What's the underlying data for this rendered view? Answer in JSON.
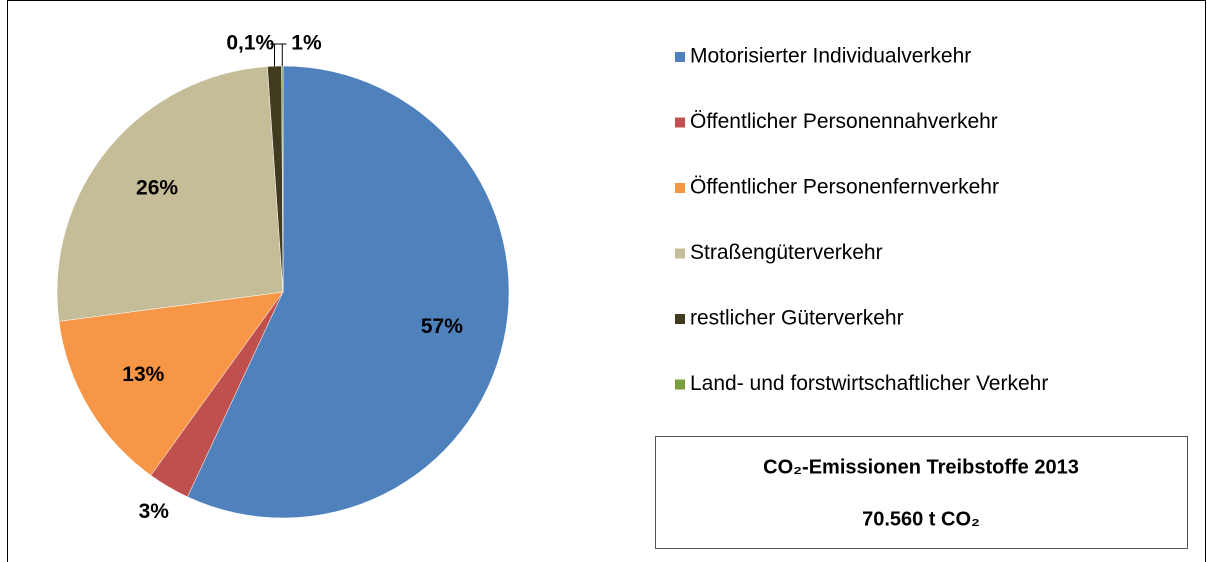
{
  "chart_data": {
    "type": "pie",
    "categories": [
      "Motorisierter Individualverkehr",
      "Öffentlicher Personennahverkehr",
      "Öffentlicher Personenfernverkehr",
      "Straßengüterverkehr",
      "restlicher Güterverkehr",
      "Land- und forstwirtschaftlicher Verkehr"
    ],
    "values": [
      57,
      3,
      13,
      26,
      1,
      0.1
    ],
    "value_labels": [
      "57%",
      "3%",
      "13%",
      "26%",
      "1%",
      "0,1%"
    ],
    "colors": [
      "#4f81bd",
      "#c0504d",
      "#f79646",
      "#c4bd97",
      "#403a1e",
      "#77a03a"
    ],
    "legend": "right",
    "annotation": [
      "CO₂-Emissionen Treibstoffe 2013",
      "70.560 t CO₂"
    ]
  }
}
